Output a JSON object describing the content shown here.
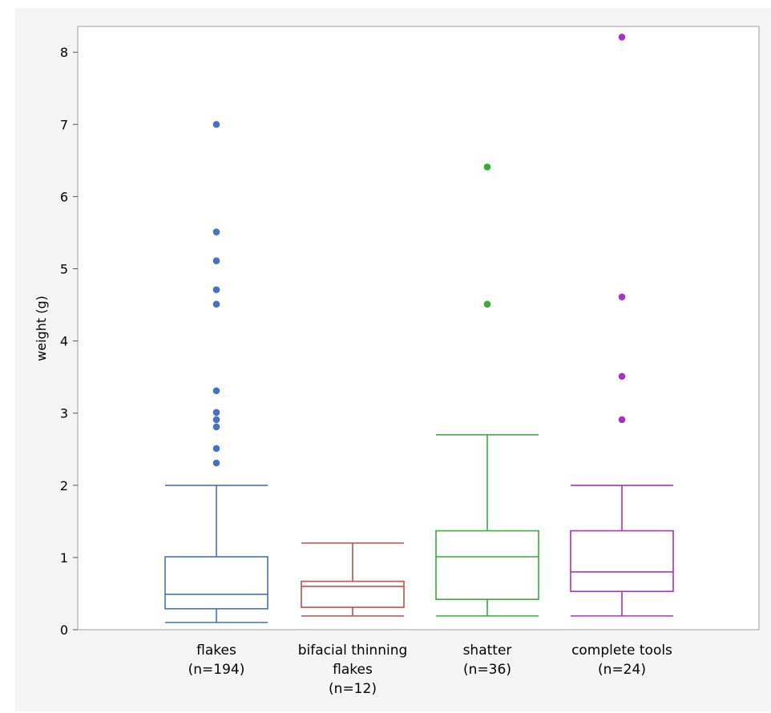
{
  "chart_data": {
    "type": "box",
    "ylabel": "weight (g)",
    "ylim": [
      0,
      8.35
    ],
    "yticks": [
      0,
      1,
      2,
      3,
      4,
      5,
      6,
      7,
      8
    ],
    "grid": false,
    "legend": "none",
    "groups": [
      {
        "label_lines": [
          "flakes",
          "(n=194)"
        ],
        "color": "#4472c4",
        "whisker_low": 0.1,
        "q1": 0.29,
        "median": 0.49,
        "q3": 1.01,
        "whisker_high": 2.0,
        "outliers": [
          2.31,
          2.51,
          2.81,
          2.91,
          3.01,
          3.31,
          4.51,
          4.71,
          5.11,
          5.51,
          7.0
        ]
      },
      {
        "label_lines": [
          "bifacial thinning",
          "flakes",
          "(n=12)"
        ],
        "color": "#c0504d",
        "whisker_low": 0.19,
        "q1": 0.31,
        "median": 0.6,
        "q3": 0.67,
        "whisker_high": 1.2,
        "outliers": []
      },
      {
        "label_lines": [
          "shatter",
          "(n=36)"
        ],
        "color": "#3aaa3a",
        "whisker_low": 0.19,
        "q1": 0.42,
        "median": 1.01,
        "q3": 1.37,
        "whisker_high": 2.7,
        "outliers": [
          4.51,
          6.41
        ]
      },
      {
        "label_lines": [
          "complete tools",
          "(n=24)"
        ],
        "color": "#a633c9",
        "whisker_low": 0.19,
        "q1": 0.53,
        "median": 0.8,
        "q3": 1.37,
        "whisker_high": 2.0,
        "outliers": [
          2.91,
          3.51,
          4.61,
          8.21
        ]
      }
    ]
  }
}
